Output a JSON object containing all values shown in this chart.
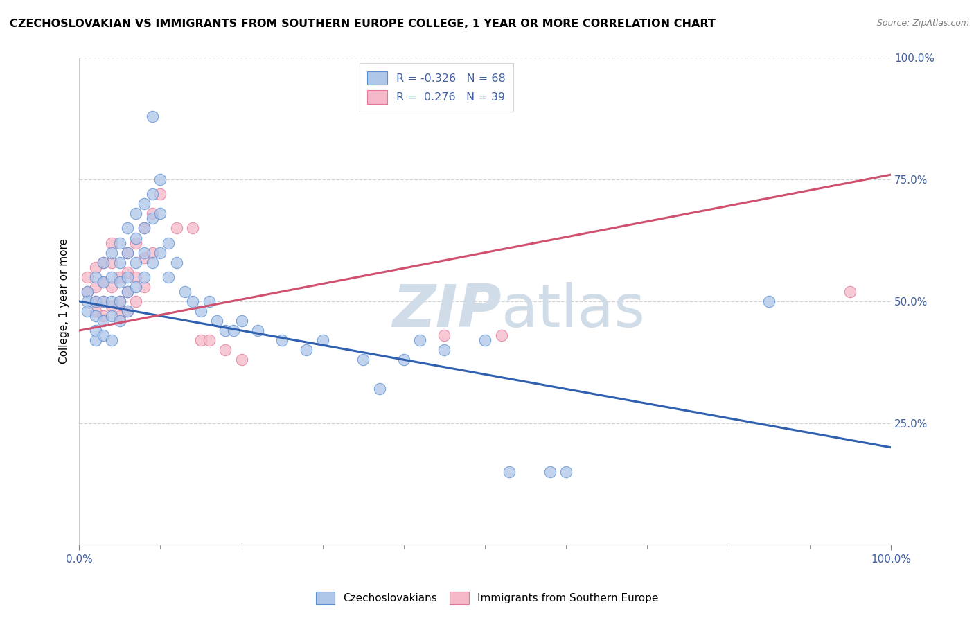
{
  "title": "CZECHOSLOVAKIAN VS IMMIGRANTS FROM SOUTHERN EUROPE COLLEGE, 1 YEAR OR MORE CORRELATION CHART",
  "source": "Source: ZipAtlas.com",
  "ylabel": "College, 1 year or more",
  "xlim": [
    0.0,
    1.0
  ],
  "ylim": [
    0.0,
    1.0
  ],
  "ytick_positions": [
    0.25,
    0.5,
    0.75,
    1.0
  ],
  "ytick_labels": [
    "25.0%",
    "50.0%",
    "75.0%",
    "100.0%"
  ],
  "legend_R1": "-0.326",
  "legend_N1": "68",
  "legend_R2": "0.276",
  "legend_N2": "39",
  "blue_fill": "#aec6e8",
  "pink_fill": "#f4b8c8",
  "blue_edge": "#5b8fd4",
  "pink_edge": "#e07898",
  "blue_line_color": "#3060b0",
  "pink_line_color": "#d05070",
  "watermark_color": "#d0dce8",
  "blue_line_x": [
    0.0,
    1.0
  ],
  "blue_line_y": [
    0.5,
    0.2
  ],
  "pink_line_x": [
    0.0,
    1.0
  ],
  "pink_line_y": [
    0.44,
    0.76
  ],
  "blue_scatter": [
    [
      0.01,
      0.52
    ],
    [
      0.01,
      0.5
    ],
    [
      0.01,
      0.48
    ],
    [
      0.02,
      0.55
    ],
    [
      0.02,
      0.5
    ],
    [
      0.02,
      0.47
    ],
    [
      0.02,
      0.44
    ],
    [
      0.02,
      0.42
    ],
    [
      0.03,
      0.58
    ],
    [
      0.03,
      0.54
    ],
    [
      0.03,
      0.5
    ],
    [
      0.03,
      0.46
    ],
    [
      0.03,
      0.43
    ],
    [
      0.04,
      0.6
    ],
    [
      0.04,
      0.55
    ],
    [
      0.04,
      0.5
    ],
    [
      0.04,
      0.47
    ],
    [
      0.04,
      0.42
    ],
    [
      0.05,
      0.62
    ],
    [
      0.05,
      0.58
    ],
    [
      0.05,
      0.54
    ],
    [
      0.05,
      0.5
    ],
    [
      0.05,
      0.46
    ],
    [
      0.06,
      0.65
    ],
    [
      0.06,
      0.6
    ],
    [
      0.06,
      0.55
    ],
    [
      0.06,
      0.52
    ],
    [
      0.06,
      0.48
    ],
    [
      0.07,
      0.68
    ],
    [
      0.07,
      0.63
    ],
    [
      0.07,
      0.58
    ],
    [
      0.07,
      0.53
    ],
    [
      0.08,
      0.7
    ],
    [
      0.08,
      0.65
    ],
    [
      0.08,
      0.6
    ],
    [
      0.08,
      0.55
    ],
    [
      0.09,
      0.72
    ],
    [
      0.09,
      0.67
    ],
    [
      0.09,
      0.58
    ],
    [
      0.1,
      0.75
    ],
    [
      0.1,
      0.68
    ],
    [
      0.1,
      0.6
    ],
    [
      0.11,
      0.62
    ],
    [
      0.11,
      0.55
    ],
    [
      0.12,
      0.58
    ],
    [
      0.13,
      0.52
    ],
    [
      0.14,
      0.5
    ],
    [
      0.15,
      0.48
    ],
    [
      0.16,
      0.5
    ],
    [
      0.17,
      0.46
    ],
    [
      0.18,
      0.44
    ],
    [
      0.19,
      0.44
    ],
    [
      0.2,
      0.46
    ],
    [
      0.22,
      0.44
    ],
    [
      0.25,
      0.42
    ],
    [
      0.28,
      0.4
    ],
    [
      0.3,
      0.42
    ],
    [
      0.35,
      0.38
    ],
    [
      0.37,
      0.32
    ],
    [
      0.4,
      0.38
    ],
    [
      0.42,
      0.42
    ],
    [
      0.45,
      0.4
    ],
    [
      0.5,
      0.42
    ],
    [
      0.53,
      0.15
    ],
    [
      0.58,
      0.15
    ],
    [
      0.6,
      0.15
    ],
    [
      0.85,
      0.5
    ],
    [
      0.09,
      0.88
    ]
  ],
  "pink_scatter": [
    [
      0.01,
      0.55
    ],
    [
      0.01,
      0.52
    ],
    [
      0.02,
      0.57
    ],
    [
      0.02,
      0.53
    ],
    [
      0.02,
      0.5
    ],
    [
      0.02,
      0.48
    ],
    [
      0.03,
      0.58
    ],
    [
      0.03,
      0.54
    ],
    [
      0.03,
      0.5
    ],
    [
      0.03,
      0.47
    ],
    [
      0.04,
      0.62
    ],
    [
      0.04,
      0.58
    ],
    [
      0.04,
      0.53
    ],
    [
      0.04,
      0.49
    ],
    [
      0.05,
      0.55
    ],
    [
      0.05,
      0.5
    ],
    [
      0.05,
      0.47
    ],
    [
      0.06,
      0.6
    ],
    [
      0.06,
      0.56
    ],
    [
      0.06,
      0.52
    ],
    [
      0.06,
      0.48
    ],
    [
      0.07,
      0.62
    ],
    [
      0.07,
      0.55
    ],
    [
      0.07,
      0.5
    ],
    [
      0.08,
      0.65
    ],
    [
      0.08,
      0.59
    ],
    [
      0.08,
      0.53
    ],
    [
      0.09,
      0.68
    ],
    [
      0.09,
      0.6
    ],
    [
      0.1,
      0.72
    ],
    [
      0.12,
      0.65
    ],
    [
      0.14,
      0.65
    ],
    [
      0.15,
      0.42
    ],
    [
      0.16,
      0.42
    ],
    [
      0.18,
      0.4
    ],
    [
      0.2,
      0.38
    ],
    [
      0.45,
      0.43
    ],
    [
      0.52,
      0.43
    ],
    [
      0.95,
      0.52
    ]
  ]
}
